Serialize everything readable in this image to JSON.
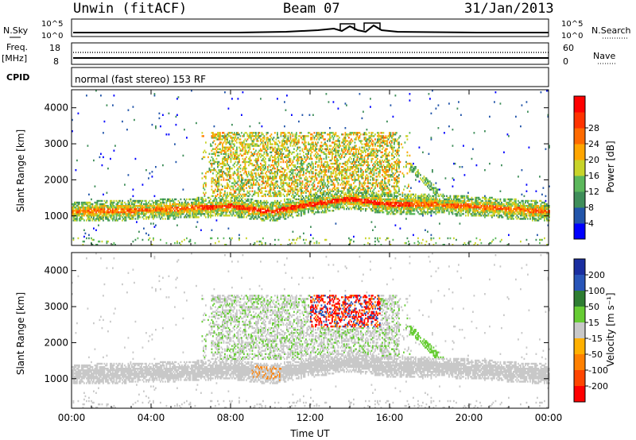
{
  "header": {
    "station": "Unwin (fitACF)",
    "beam": "Beam 07",
    "date": "31/Jan/2013"
  },
  "labels": {
    "nsky": "N.Sky",
    "freq": "Freq.",
    "mhz": "[MHz]",
    "cpid": "CPID",
    "nsearch": "N.Search",
    "nave": "Nave",
    "mode": "normal (fast stereo) 153 RF",
    "noise_tick_hi": "10^5",
    "noise_tick_lo": "10^0",
    "freq_tick_hi": "18",
    "freq_tick_lo": "8",
    "nave_tick_hi": "60",
    "nave_tick_lo": "0"
  },
  "colors": {
    "power": [
      "#0000ff",
      "#2255aa",
      "#3f8e5a",
      "#5cb85c",
      "#c8d42a",
      "#ffa500",
      "#ff6a00",
      "#ff3300",
      "#ff0000"
    ],
    "velocity": [
      "#1a2ea0",
      "#2855b8",
      "#2e7d32",
      "#66cc33",
      "#c8c8c8",
      "#ffb000",
      "#ff8000",
      "#ff4500",
      "#ff0000"
    ]
  },
  "chart_data": [
    {
      "type": "heatmap",
      "title": "",
      "quantity": "Power",
      "xlabel": "",
      "ylabel": "Slant Range [km]",
      "xlim_hours": [
        0,
        24
      ],
      "ylim_km": [
        180,
        4500
      ],
      "x_ticks": [
        "00:00",
        "04:00",
        "08:00",
        "12:00",
        "16:00",
        "20:00",
        "00:00"
      ],
      "y_ticks": [
        1000,
        2000,
        3000,
        4000
      ],
      "colorbar": {
        "label": "Power [dB]",
        "ticks": [
          4,
          8,
          12,
          16,
          20,
          24,
          28
        ]
      },
      "echo_layer_center_km": [
        {
          "hour": 0,
          "km": 1100
        },
        {
          "hour": 4,
          "km": 1150
        },
        {
          "hour": 8,
          "km": 1250
        },
        {
          "hour": 10,
          "km": 1100
        },
        {
          "hour": 12,
          "km": 1300
        },
        {
          "hour": 14,
          "km": 1450
        },
        {
          "hour": 16,
          "km": 1300
        },
        {
          "hour": 18,
          "km": 1300
        },
        {
          "hour": 20,
          "km": 1250
        },
        {
          "hour": 24,
          "km": 1100
        }
      ]
    },
    {
      "type": "heatmap",
      "title": "",
      "quantity": "Velocity",
      "xlabel": "Time UT",
      "ylabel": "Slant Range [km]",
      "xlim_hours": [
        0,
        24
      ],
      "ylim_km": [
        180,
        4500
      ],
      "x_ticks": [
        "00:00",
        "04:00",
        "08:00",
        "12:00",
        "16:00",
        "20:00",
        "00:00"
      ],
      "y_ticks": [
        1000,
        2000,
        3000,
        4000
      ],
      "colorbar": {
        "label": "Velocity [m s⁻¹]",
        "ticks": [
          200,
          100,
          50,
          15,
          -15,
          -50,
          -100,
          -200
        ]
      }
    }
  ]
}
